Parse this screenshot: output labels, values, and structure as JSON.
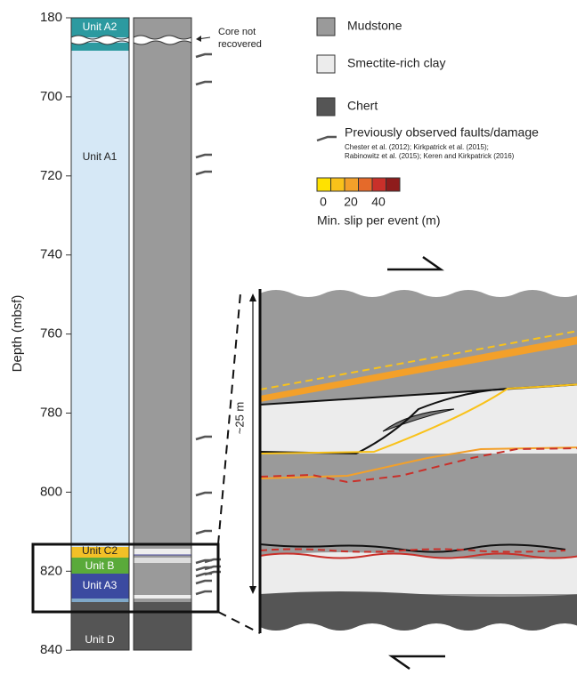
{
  "axis": {
    "label": "Depth (mbsf)",
    "ticks": [
      180,
      700,
      720,
      740,
      760,
      780,
      800,
      820,
      840
    ]
  },
  "units": [
    "Unit A2",
    "Unit A1",
    "Unit C2",
    "Unit B",
    "Unit A3",
    "Unit D"
  ],
  "annotation": [
    "Core not",
    "recovered"
  ],
  "legend": {
    "items": [
      "Mudstone",
      "Smectite-rich clay",
      "Chert"
    ],
    "faults": "Previously observed faults/damage",
    "references": [
      "Chester et al. (2012); Kirkpatrick et al. (2015);",
      "Rabinowitz et al. (2015); Keren and Kirkpatrick (2016)"
    ],
    "scale_ticks": [
      0,
      20,
      40
    ],
    "scale_label": "Min. slip per event (m)"
  },
  "thickness": "~25 m"
}
